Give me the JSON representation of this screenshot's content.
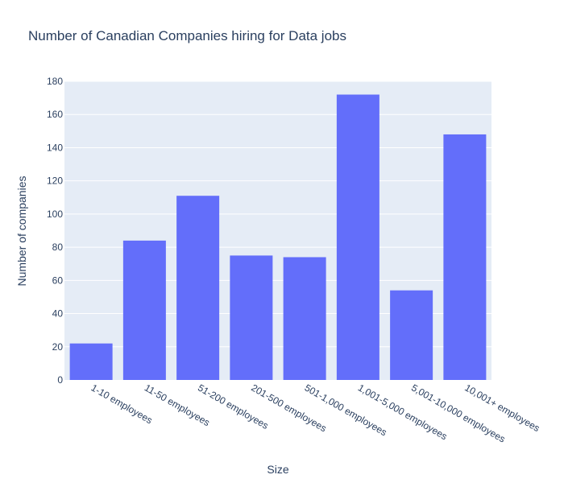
{
  "chart_data": {
    "type": "bar",
    "title": "Number of Canadian Companies hiring for Data jobs",
    "xlabel": "Size",
    "ylabel": "Number of companies",
    "categories": [
      "1-10 employees",
      "11-50 employees",
      "51-200 employees",
      "201-500 employees",
      "501-1,000 employees",
      "1,001-5,000 employees",
      "5,001-10,000 employees",
      "10,001+ employees"
    ],
    "values": [
      22,
      84,
      111,
      75,
      74,
      172,
      54,
      148
    ],
    "ylim": [
      0,
      180
    ],
    "yticks": [
      0,
      20,
      40,
      60,
      80,
      100,
      120,
      140,
      160,
      180
    ],
    "grid": true,
    "legend": "none",
    "bar_color": "#636efa",
    "plot_background": "#e5ecf6",
    "text_color": "#2a3f5f"
  }
}
